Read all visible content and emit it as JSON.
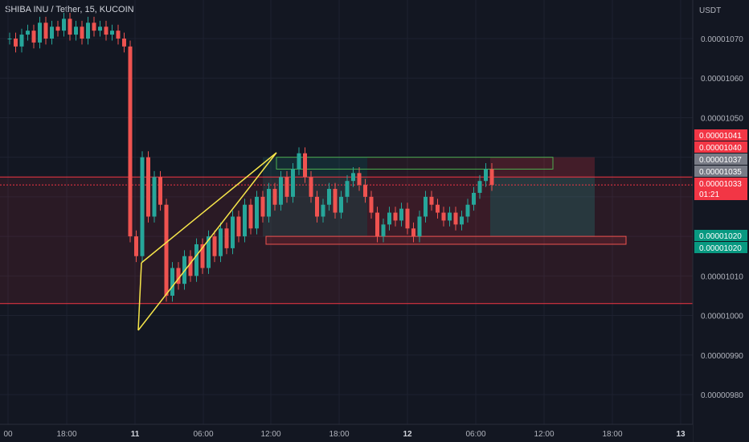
{
  "header": {
    "title": "SHIBA INU / Tether, 15, KUCOIN"
  },
  "colors": {
    "background": "#131722",
    "grid": "#1e2230",
    "text": "#b2b5be",
    "up": "#26a69a",
    "down": "#ef5350",
    "wedge": "#f7e64a",
    "zone_red": "#ef5350",
    "zone_green": "#26a69a"
  },
  "chart_data": {
    "type": "candlestick",
    "title": "SHIBA INU / Tether, 15, KUCOIN",
    "ylabel": "USDT",
    "ylim": [
      9.75e-08,
      1.078e-08
    ],
    "y_ticks": [
      "0.00001070",
      "0.00001060",
      "0.00001050",
      "0.00001040",
      "0.00001030",
      "0.00001020",
      "0.00001010",
      "0.00001000",
      "0.00000990",
      "0.00000980"
    ],
    "y_tick_values": [
      1.07e-05,
      1.06e-05,
      1.05e-05,
      1.04e-05,
      1.03e-05,
      1.02e-05,
      1.01e-05,
      1e-05,
      9.9e-06,
      9.8e-06
    ],
    "x_ticks": [
      "00",
      "18:00",
      "11",
      "06:00",
      "12:00",
      "18:00",
      "12",
      "06:00",
      "12:00",
      "18:00",
      "13"
    ],
    "x_bold": [
      "11",
      "12",
      "13"
    ],
    "price_badges": [
      {
        "label": "0.00001041",
        "value": 1.041e-05,
        "color": "#f23645"
      },
      {
        "label": "0.00001040",
        "value": 1.04e-05,
        "color": "#f23645"
      },
      {
        "label": "0.00001037",
        "value": 1.037e-05,
        "color": "#787b86"
      },
      {
        "label": "0.00001035",
        "value": 1.035e-05,
        "color": "#787b86"
      },
      {
        "label": "0.00001033",
        "value": 1.033e-05,
        "color": "#f23645",
        "sub": "01:21"
      },
      {
        "label": "0.00001020",
        "value": 1.02e-05,
        "color": "#089981"
      },
      {
        "label": "0.00001020",
        "value": 1.02e-05,
        "color": "#089981"
      }
    ],
    "horizontal_lines": [
      {
        "value": 1.035e-05,
        "color": "#f23645"
      },
      {
        "value": 1.003e-05,
        "color": "#f23645"
      },
      {
        "value": 1.033e-05,
        "color": "#f23645",
        "dotted": true
      }
    ],
    "candles_close_path": [
      1070,
      1068,
      1071,
      1072,
      1069,
      1074,
      1070,
      1073,
      1072,
      1075,
      1071,
      1073,
      1070,
      1074,
      1072,
      1073,
      1071,
      1072,
      1070,
      1068,
      1020,
      1015,
      1040,
      1025,
      1035,
      1028,
      1005,
      1012,
      1008,
      1015,
      1010,
      1018,
      1012,
      1020,
      1015,
      1022,
      1017,
      1025,
      1020,
      1028,
      1022,
      1030,
      1025,
      1032,
      1028,
      1035,
      1030,
      1037,
      1041,
      1035,
      1030,
      1025,
      1028,
      1032,
      1026,
      1030,
      1034,
      1036,
      1033,
      1030,
      1026,
      1020,
      1023,
      1026,
      1024,
      1027,
      1022,
      1020,
      1025,
      1030,
      1028,
      1026,
      1024,
      1026,
      1023,
      1025,
      1028,
      1031,
      1034,
      1037,
      1033
    ],
    "long_position": {
      "entry": 1.035e-05,
      "target": 1.04e-05,
      "stop": 1.02e-05
    },
    "range_box": {
      "top": 1.037e-05,
      "bottom": 1.02e-05
    }
  }
}
